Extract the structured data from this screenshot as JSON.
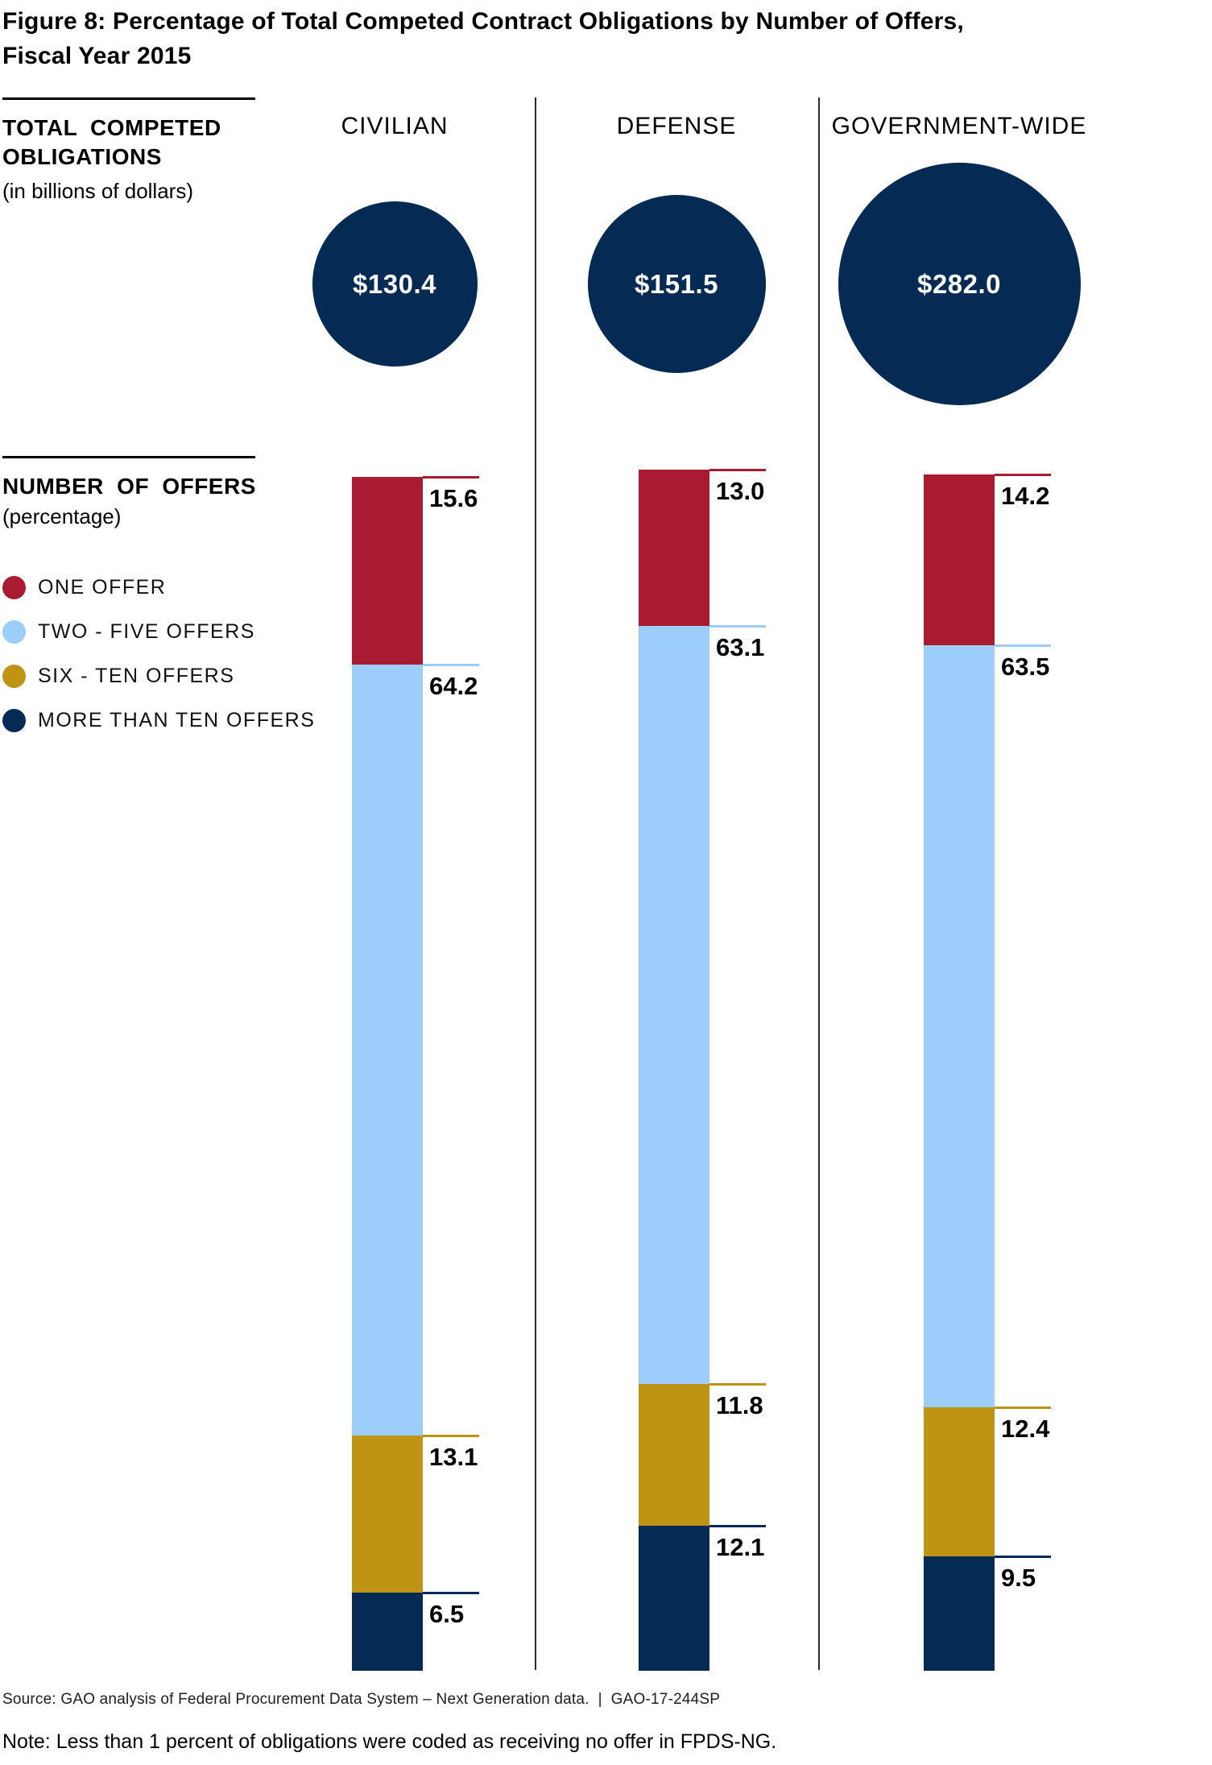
{
  "title": "Figure 8: Percentage of Total Competed Contract Obligations by Number of Offers,\nFiscal Year 2015",
  "sections": {
    "obligations": {
      "heading_line1": "TOTAL COMPETED",
      "heading_line2": "OBLIGATIONS",
      "subheading": "(in billions of dollars)"
    },
    "offers": {
      "heading": "NUMBER OF OFFERS",
      "subheading": "(percentage)"
    }
  },
  "legend": [
    {
      "label": "ONE OFFER",
      "color": "#AA1A31"
    },
    {
      "label": "TWO - FIVE OFFERS",
      "color": "#9CCDFB"
    },
    {
      "label": "SIX - TEN OFFERS",
      "color": "#BF9314"
    },
    {
      "label": "MORE THAN TEN OFFERS",
      "color": "#052B55"
    }
  ],
  "source_line": "Source: GAO analysis of Federal Procurement Data System – Next Generation data.  |  GAO-17-244SP",
  "note_line": "Note: Less than 1 percent of obligations were coded as receiving no offer in FPDS-NG.",
  "chart_data": {
    "type": "bar",
    "variant": "stacked-percentage-columns-with-proportional-circles",
    "categories": [
      "CIVILIAN",
      "DEFENSE",
      "GOVERNMENT-WIDE"
    ],
    "circles": {
      "title": "TOTAL COMPETED OBLIGATIONS (in billions of dollars)",
      "values": [
        130.4,
        151.5,
        282.0
      ],
      "labels": [
        "$130.4",
        "$151.5",
        "$282.0"
      ],
      "color": "#052B55",
      "encoding": "circle area proportional to value"
    },
    "series": [
      {
        "name": "ONE OFFER",
        "color": "#AA1A31",
        "values": [
          15.6,
          13.0,
          14.2
        ]
      },
      {
        "name": "TWO - FIVE OFFERS",
        "color": "#9CCDFB",
        "values": [
          64.2,
          63.1,
          63.5
        ]
      },
      {
        "name": "SIX - TEN OFFERS",
        "color": "#BF9314",
        "values": [
          13.1,
          11.8,
          12.4
        ]
      },
      {
        "name": "MORE THAN TEN OFFERS",
        "color": "#052B55",
        "values": [
          6.5,
          12.1,
          9.5
        ]
      }
    ],
    "unit": "percent",
    "ylim": [
      0,
      100
    ],
    "grid": false,
    "legend_position": "left"
  }
}
